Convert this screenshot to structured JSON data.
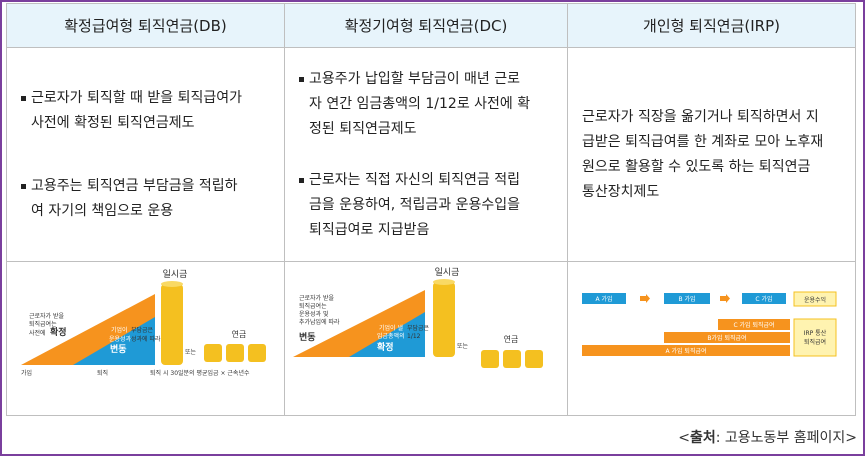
{
  "columns": [
    {
      "header": "확정급여형 퇴직연금(DB)",
      "bullets": [
        "근로자가 퇴직할 때 받을 퇴직급여가\n사전에 확정된 퇴직연금제도",
        "고용주는 퇴직연금 부담금을 적립하\n여 자기의 책임으로 운용"
      ]
    },
    {
      "header": "확정기여형 퇴직연금(DC)",
      "bullets": [
        "고용주가 납입할 부담금이 매년 근로\n자 연간 임금총액의 1/12로 사전에 확\n정된 퇴직연금제도",
        "근로자는 직접 자신의 퇴직연금 적립\n금을 운용하여, 적립금과 운용수입을\n퇴직급여로 지급받음"
      ]
    },
    {
      "header": "개인형 퇴직연금(IRP)",
      "text": "근로자가 직장을 옮기거나 퇴직하면서 지\n급받은 퇴직급여를 한 계좌로 모아 노후재\n원으로 활용할 수 있도록 하는 퇴직연금\n통산장치제도"
    }
  ],
  "db_figure": {
    "lumpsum": "일시금",
    "pension": "연금",
    "or": "또는",
    "join": "가입",
    "retire": "퇴직",
    "worker_note_1": "근로자가 받을",
    "worker_note_2": "퇴직급여는",
    "worker_note_3": "사전에",
    "worker_fixed": "확정",
    "employer_note_1": "기업이",
    "employer_note_2": "운용성과",
    "employer_note_3": "변동",
    "employer_side_1": "부담금은",
    "employer_side_2": "성과에 따라",
    "formula": "퇴직 시 30일분의 평균임금 × 근속년수"
  },
  "dc_figure": {
    "lumpsum": "일시금",
    "pension": "연금",
    "or": "또는",
    "worker_note_1": "근로자가 받을",
    "worker_note_2": "퇴직급여는",
    "worker_note_3": "운용성과 및",
    "worker_note_4": "추가납입에 따라",
    "worker_var": "변동",
    "employer_note_1": "기업이 낼",
    "employer_note_2": "부담금은",
    "employer_note_3": "임금총액의",
    "employer_note_4": "1/12",
    "employer_fixed": "확정"
  },
  "irp_figure": {
    "a": "A 가입",
    "b": "B 가입",
    "c": "C 가입",
    "mgmt": "운용수익",
    "bar_c": "C 가입 퇴직급여",
    "bar_b": "B가입 퇴직급여",
    "bar_a": "A 가입 퇴직급여",
    "irp_1": "IRP 통산",
    "irp_2": "퇴직급여"
  },
  "source": {
    "prefix": "<",
    "label": "출처",
    "rest": ": 고용노동부 홈페이지>"
  },
  "colors": {
    "header_bg": "#e7f4fb",
    "orange": "#f6931e",
    "blue": "#1f9ad6",
    "gold": "#f4c020",
    "frame": "#7a3f9d"
  }
}
